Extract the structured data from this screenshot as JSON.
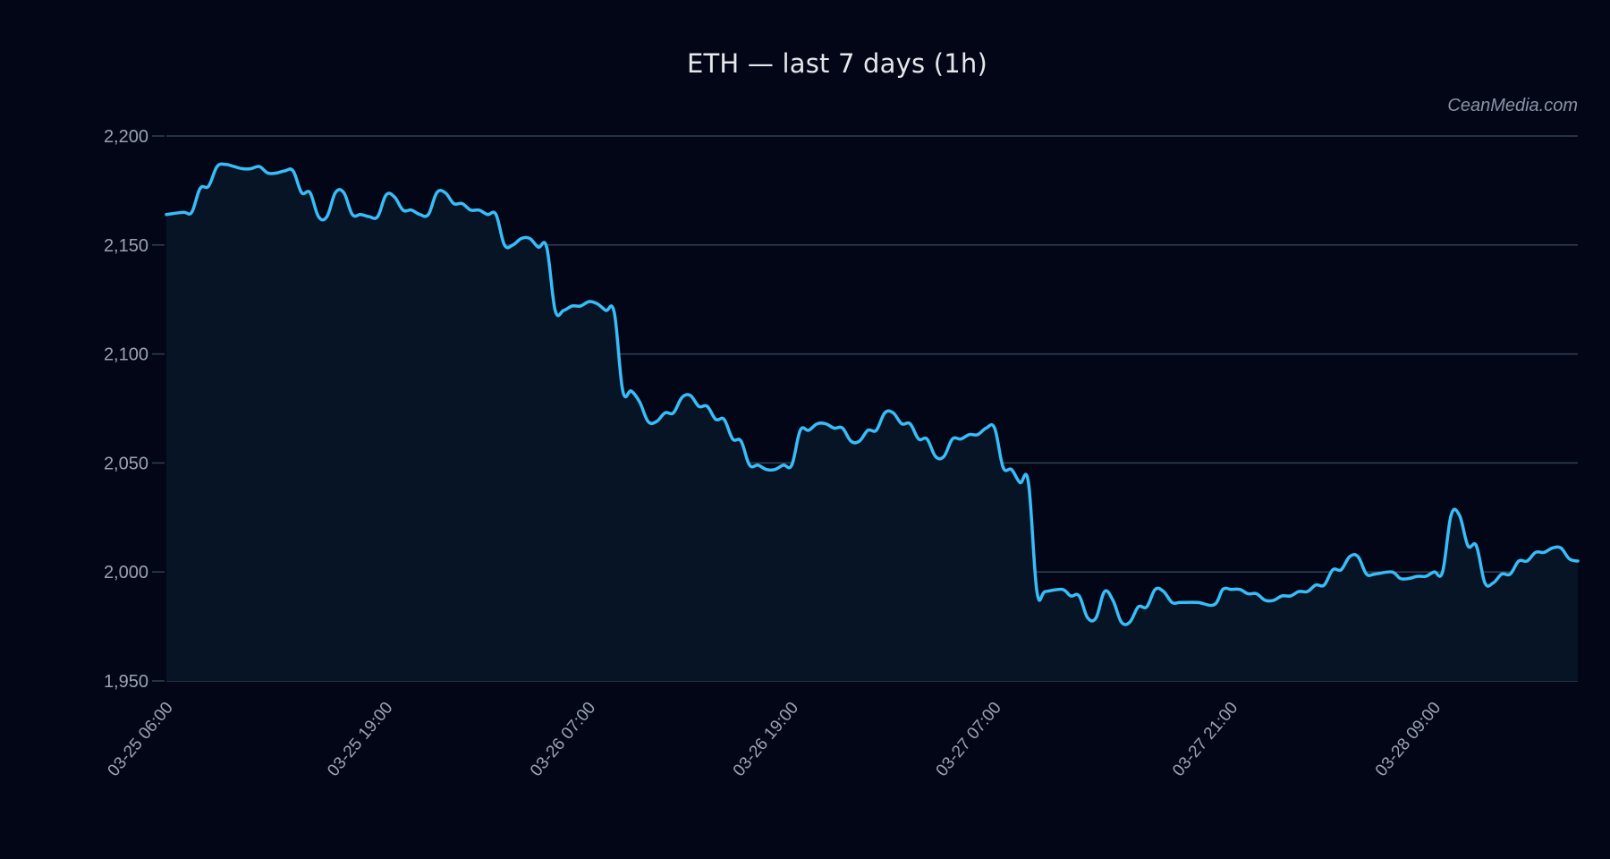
{
  "header": {
    "title": "ETH — last 7 days (1h)",
    "watermark": "CeanMedia.com"
  },
  "colors": {
    "background": "#020617",
    "plot_background": "#071426",
    "line": "#38bdf8",
    "grid": "#334155",
    "tick_label": "#9ca3af",
    "title": "#e5e7eb"
  },
  "chart_data": {
    "type": "area",
    "title": "ETH — last 7 days (1h)",
    "xlabel": "",
    "ylabel": "",
    "ylim": [
      1950,
      2200
    ],
    "grid": true,
    "legend": null,
    "y_ticks": [
      1950,
      2000,
      2050,
      2100,
      2150,
      2200
    ],
    "y_tick_labels": [
      "1,950",
      "2,000",
      "2,050",
      "2,100",
      "2,150",
      "2,200"
    ],
    "x_tick_labels": [
      "03-25 06:00",
      "03-25 19:00",
      "03-26 07:00",
      "03-26 19:00",
      "03-27 07:00",
      "03-27 21:00",
      "03-28 09:00"
    ],
    "x_tick_hours": [
      0,
      13,
      25,
      37,
      49,
      63,
      75
    ],
    "x_range_hours": [
      0,
      83.5
    ],
    "series": [
      {
        "name": "ETH",
        "points": [
          [
            0,
            2164
          ],
          [
            1,
            2165
          ],
          [
            1.5,
            2165
          ],
          [
            2,
            2176
          ],
          [
            2.5,
            2177
          ],
          [
            3,
            2186
          ],
          [
            3.5,
            2187
          ],
          [
            4,
            2186
          ],
          [
            4.5,
            2185
          ],
          [
            5,
            2185
          ],
          [
            5.5,
            2186
          ],
          [
            6,
            2183
          ],
          [
            6.5,
            2183
          ],
          [
            7,
            2184
          ],
          [
            7.5,
            2184
          ],
          [
            8,
            2174
          ],
          [
            8.5,
            2174
          ],
          [
            9,
            2163
          ],
          [
            9.5,
            2163
          ],
          [
            10,
            2174
          ],
          [
            10.5,
            2174
          ],
          [
            11,
            2164
          ],
          [
            11.5,
            2164
          ],
          [
            12,
            2163
          ],
          [
            12.5,
            2163
          ],
          [
            13,
            2173
          ],
          [
            13.5,
            2172
          ],
          [
            14,
            2166
          ],
          [
            14.5,
            2166
          ],
          [
            15,
            2164
          ],
          [
            15.5,
            2164
          ],
          [
            16,
            2174
          ],
          [
            16.5,
            2174
          ],
          [
            17,
            2169
          ],
          [
            17.5,
            2169
          ],
          [
            18,
            2166
          ],
          [
            18.5,
            2166
          ],
          [
            19,
            2164
          ],
          [
            19.5,
            2164
          ],
          [
            20,
            2150
          ],
          [
            20.5,
            2150
          ],
          [
            21,
            2153
          ],
          [
            21.5,
            2153
          ],
          [
            22,
            2149
          ],
          [
            22.5,
            2149
          ],
          [
            23,
            2120
          ],
          [
            23.5,
            2120
          ],
          [
            24,
            2122
          ],
          [
            24.5,
            2122
          ],
          [
            25,
            2124
          ],
          [
            25.5,
            2123
          ],
          [
            26,
            2120
          ],
          [
            26.5,
            2119
          ],
          [
            27,
            2083
          ],
          [
            27.5,
            2083
          ],
          [
            28,
            2078
          ],
          [
            28.5,
            2069
          ],
          [
            29,
            2069
          ],
          [
            29.5,
            2073
          ],
          [
            30,
            2073
          ],
          [
            30.5,
            2080
          ],
          [
            31,
            2081
          ],
          [
            31.5,
            2076
          ],
          [
            32,
            2076
          ],
          [
            32.5,
            2070
          ],
          [
            33,
            2070
          ],
          [
            33.5,
            2061
          ],
          [
            34,
            2060
          ],
          [
            34.5,
            2049
          ],
          [
            35,
            2049
          ],
          [
            35.5,
            2047
          ],
          [
            36,
            2047
          ],
          [
            36.5,
            2049
          ],
          [
            37,
            2049
          ],
          [
            37.5,
            2065
          ],
          [
            38,
            2065
          ],
          [
            38.5,
            2068
          ],
          [
            39,
            2068
          ],
          [
            39.5,
            2066
          ],
          [
            40,
            2066
          ],
          [
            40.5,
            2060
          ],
          [
            41,
            2060
          ],
          [
            41.5,
            2065
          ],
          [
            42,
            2065
          ],
          [
            42.5,
            2073
          ],
          [
            43,
            2073
          ],
          [
            43.5,
            2068
          ],
          [
            44,
            2068
          ],
          [
            44.5,
            2061
          ],
          [
            45,
            2061
          ],
          [
            45.5,
            2053
          ],
          [
            46,
            2053
          ],
          [
            46.5,
            2061
          ],
          [
            47,
            2061
          ],
          [
            47.5,
            2063
          ],
          [
            48,
            2063
          ],
          [
            48.5,
            2066
          ],
          [
            49,
            2066
          ],
          [
            49.5,
            2048
          ],
          [
            50,
            2047
          ],
          [
            50.5,
            2041
          ],
          [
            51,
            2041
          ],
          [
            51.5,
            1991
          ],
          [
            52,
            1991
          ],
          [
            53,
            1992
          ],
          [
            53.5,
            1989
          ],
          [
            54,
            1989
          ],
          [
            54.5,
            1979
          ],
          [
            55,
            1979
          ],
          [
            55.5,
            1991
          ],
          [
            56,
            1987
          ],
          [
            56.5,
            1977
          ],
          [
            57,
            1977
          ],
          [
            57.5,
            1984
          ],
          [
            58,
            1984
          ],
          [
            58.5,
            1992
          ],
          [
            59,
            1991
          ],
          [
            59.5,
            1986
          ],
          [
            60,
            1986
          ],
          [
            61,
            1986
          ],
          [
            62,
            1985
          ],
          [
            62.5,
            1992
          ],
          [
            63,
            1992
          ],
          [
            63.5,
            1992
          ],
          [
            64,
            1990
          ],
          [
            64.5,
            1990
          ],
          [
            65,
            1987
          ],
          [
            65.5,
            1987
          ],
          [
            66,
            1989
          ],
          [
            66.5,
            1989
          ],
          [
            67,
            1991
          ],
          [
            67.5,
            1991
          ],
          [
            68,
            1994
          ],
          [
            68.5,
            1994
          ],
          [
            69,
            2001
          ],
          [
            69.5,
            2001
          ],
          [
            70,
            2007
          ],
          [
            70.5,
            2007
          ],
          [
            71,
            1999
          ],
          [
            71.5,
            1999
          ],
          [
            72.5,
            2000
          ],
          [
            73,
            1997
          ],
          [
            73.5,
            1997
          ],
          [
            74,
            1998
          ],
          [
            74.5,
            1998
          ],
          [
            75,
            2000
          ],
          [
            75.5,
            2000
          ],
          [
            76,
            2026
          ],
          [
            76.5,
            2026
          ],
          [
            77,
            2012
          ],
          [
            77.5,
            2012
          ],
          [
            78,
            1995
          ],
          [
            78.5,
            1995
          ],
          [
            79,
            1999
          ],
          [
            79.5,
            1999
          ],
          [
            80,
            2005
          ],
          [
            80.5,
            2005
          ],
          [
            81,
            2009
          ],
          [
            81.5,
            2009
          ],
          [
            82,
            2011
          ],
          [
            82.5,
            2011
          ],
          [
            83,
            2006
          ],
          [
            83.5,
            2005
          ]
        ]
      }
    ]
  }
}
